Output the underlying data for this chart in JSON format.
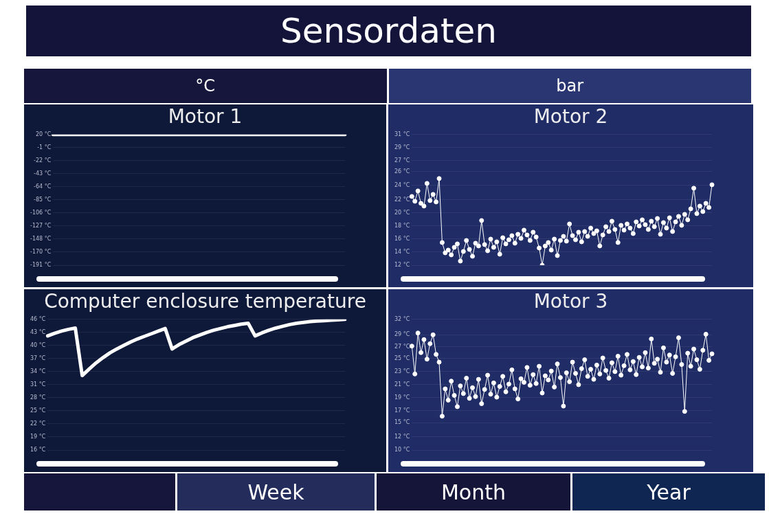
{
  "chart_data": [
    {
      "type": "other",
      "title": "Sensordaten",
      "annotations": [
        "°C",
        "bar"
      ]
    },
    {
      "type": "line",
      "title": "Motor 1",
      "categories": [
        null,
        null,
        null,
        null,
        null,
        null,
        null,
        null,
        null,
        null
      ],
      "color": "#ffffff",
      "values": [
        20,
        20,
        20,
        20,
        20,
        20,
        20,
        20,
        20,
        20
      ],
      "ylim": [
        -191,
        20
      ],
      "yticks": [
        {
          "value": 20,
          "label": "20 °C"
        },
        {
          "value": -1.1,
          "label": "-1 °C"
        },
        {
          "value": -22.2,
          "label": "-22 °C"
        },
        {
          "value": -43.3,
          "label": "-43 °C"
        },
        {
          "value": -64.4,
          "label": "-64 °C"
        },
        {
          "value": -85.5,
          "label": "-85 °C"
        },
        {
          "value": -106.4,
          "label": "-106 °C"
        },
        {
          "value": -127.4,
          "label": "-127 °C"
        },
        {
          "value": -148.4,
          "label": "-148 °C"
        },
        {
          "value": -169.9,
          "label": "-170 °C"
        },
        {
          "value": -191,
          "label": "-191 °C"
        }
      ],
      "tick_labels": "y",
      "grid": "y",
      "marker": "none"
    },
    {
      "type": "line",
      "title": "Motor 2",
      "categories": [
        null,
        null,
        null,
        null,
        null,
        null,
        null,
        null,
        null,
        null,
        null,
        null,
        null,
        null,
        null,
        null,
        null,
        null,
        null,
        null,
        null,
        null,
        null,
        null,
        null,
        null,
        null,
        null,
        null,
        null,
        null,
        null,
        null,
        null,
        null,
        null,
        null,
        null,
        null,
        null,
        null,
        null,
        null,
        null,
        null,
        null,
        null,
        null,
        null,
        null,
        null,
        null,
        null,
        null,
        null,
        null,
        null,
        null,
        null,
        null,
        null,
        null,
        null,
        null,
        null,
        null,
        null,
        null,
        null,
        null,
        null,
        null,
        null,
        null,
        null,
        null,
        null,
        null,
        null,
        null,
        null,
        null,
        null,
        null,
        null,
        null,
        null,
        null,
        null,
        null,
        null,
        null,
        null,
        null,
        null,
        null,
        null,
        null,
        null,
        null
      ],
      "color": "#ffffff",
      "values": [
        22.0,
        21.3,
        22.8,
        21.0,
        20.6,
        23.9,
        21.4,
        22.3,
        21.2,
        24.6,
        15.3,
        13.8,
        14.2,
        13.5,
        14.6,
        15.1,
        12.6,
        14.0,
        15.6,
        14.3,
        13.3,
        15.2,
        14.8,
        18.5,
        15.0,
        14.1,
        15.8,
        14.6,
        15.4,
        13.6,
        16.0,
        15.1,
        15.7,
        16.3,
        15.2,
        16.5,
        15.9,
        17.1,
        16.4,
        15.6,
        16.8,
        16.1,
        14.5,
        12.0,
        14.8,
        15.3,
        14.2,
        15.8,
        13.4,
        15.6,
        16.2,
        15.5,
        18.0,
        16.3,
        15.7,
        16.8,
        15.4,
        16.9,
        16.2,
        17.4,
        16.6,
        17.0,
        14.8,
        16.4,
        17.6,
        16.9,
        18.4,
        17.2,
        15.3,
        17.8,
        17.1,
        18.0,
        17.4,
        16.6,
        18.3,
        17.7,
        18.6,
        17.9,
        17.2,
        18.4,
        17.6,
        18.8,
        16.5,
        18.2,
        17.4,
        18.9,
        16.9,
        18.3,
        19.1,
        17.8,
        19.4,
        18.6,
        20.2,
        23.2,
        19.5,
        20.6,
        19.8,
        21.0,
        20.4,
        23.7
      ],
      "ylim": [
        12,
        31
      ],
      "yticks": [
        {
          "value": 31,
          "label": "31 °C"
        },
        {
          "value": 29.1,
          "label": "29 °C"
        },
        {
          "value": 27.2,
          "label": "27 °C"
        },
        {
          "value": 25.6,
          "label": "26 °C"
        },
        {
          "value": 23.6,
          "label": "24 °C"
        },
        {
          "value": 21.5,
          "label": "22 °C"
        },
        {
          "value": 19.6,
          "label": "20 °C"
        },
        {
          "value": 17.7,
          "label": "18 °C"
        },
        {
          "value": 15.8,
          "label": "16 °C"
        },
        {
          "value": 13.9,
          "label": "14 °C"
        },
        {
          "value": 12,
          "label": "12 °C"
        }
      ],
      "tick_labels": "y",
      "grid": "y",
      "marker": "circle"
    },
    {
      "type": "line",
      "title": "Computer enclosure temperature",
      "categories": [
        null,
        null,
        null,
        null,
        null,
        null,
        null,
        null,
        null,
        null,
        null,
        null,
        null,
        null,
        null,
        null,
        null,
        null,
        null,
        null,
        null,
        null,
        null,
        null,
        null,
        null,
        null,
        null,
        null,
        null,
        null,
        null,
        null,
        null,
        null,
        null,
        null,
        null,
        null,
        null,
        null,
        null,
        null,
        null
      ],
      "color": "#ffffff",
      "values": [
        42.2,
        42.8,
        43.3,
        43.7,
        44.0,
        33.1,
        34.6,
        36.0,
        37.2,
        38.3,
        39.2,
        40.0,
        40.8,
        41.5,
        42.1,
        42.7,
        43.3,
        43.9,
        39.2,
        40.2,
        41.0,
        41.8,
        42.4,
        43.0,
        43.5,
        43.9,
        44.3,
        44.6,
        44.9,
        45.1,
        42.2,
        42.9,
        43.5,
        44.0,
        44.4,
        44.8,
        45.1,
        45.3,
        45.5,
        45.6,
        45.7,
        45.8,
        45.9,
        46.0
      ],
      "ylim": [
        16,
        46
      ],
      "yticks": [
        {
          "value": 46,
          "label": "46 °C"
        },
        {
          "value": 43,
          "label": "43 °C"
        },
        {
          "value": 40,
          "label": "40 °C"
        },
        {
          "value": 37,
          "label": "37 °C"
        },
        {
          "value": 34,
          "label": "34 °C"
        },
        {
          "value": 31,
          "label": "31 °C"
        },
        {
          "value": 28,
          "label": "28 °C"
        },
        {
          "value": 25,
          "label": "25 °C"
        },
        {
          "value": 22,
          "label": "22 °C"
        },
        {
          "value": 19,
          "label": "19 °C"
        },
        {
          "value": 16,
          "label": "16 °C"
        }
      ],
      "tick_labels": "y",
      "grid": "y",
      "marker": "none"
    },
    {
      "type": "line",
      "title": "Motor 3",
      "categories": [
        null,
        null,
        null,
        null,
        null,
        null,
        null,
        null,
        null,
        null,
        null,
        null,
        null,
        null,
        null,
        null,
        null,
        null,
        null,
        null,
        null,
        null,
        null,
        null,
        null,
        null,
        null,
        null,
        null,
        null,
        null,
        null,
        null,
        null,
        null,
        null,
        null,
        null,
        null,
        null,
        null,
        null,
        null,
        null,
        null,
        null,
        null,
        null,
        null,
        null,
        null,
        null,
        null,
        null,
        null,
        null,
        null,
        null,
        null,
        null,
        null,
        null,
        null,
        null,
        null,
        null,
        null,
        null,
        null,
        null,
        null,
        null,
        null,
        null,
        null,
        null,
        null,
        null,
        null,
        null,
        null,
        null,
        null,
        null,
        null,
        null,
        null,
        null,
        null,
        null,
        null,
        null,
        null,
        null,
        null,
        null,
        null,
        null,
        null,
        null
      ],
      "color": "#ffffff",
      "values": [
        27.5,
        22.8,
        29.7,
        26.4,
        28.6,
        25.3,
        27.9,
        29.4,
        26.1,
        24.8,
        15.7,
        20.3,
        18.4,
        21.6,
        19.2,
        17.3,
        20.8,
        19.5,
        22.1,
        18.7,
        20.5,
        19.0,
        21.9,
        17.8,
        20.2,
        22.6,
        19.4,
        21.3,
        18.9,
        20.7,
        22.4,
        19.8,
        21.1,
        23.5,
        20.3,
        18.6,
        22.0,
        21.4,
        23.9,
        20.9,
        22.7,
        21.2,
        24.1,
        19.6,
        22.5,
        21.8,
        23.3,
        20.6,
        24.5,
        22.2,
        17.4,
        23.0,
        21.5,
        24.8,
        22.9,
        21.0,
        23.7,
        25.2,
        22.4,
        23.6,
        21.9,
        24.3,
        22.8,
        25.5,
        23.4,
        22.1,
        24.7,
        23.2,
        25.8,
        22.6,
        24.2,
        26.1,
        23.5,
        24.9,
        22.7,
        25.6,
        24.0,
        26.4,
        23.8,
        28.7,
        24.6,
        25.3,
        23.1,
        27.2,
        24.8,
        26.0,
        22.9,
        25.7,
        28.9,
        24.4,
        16.5,
        26.3,
        24.1,
        27.0,
        25.2,
        23.6,
        26.8,
        29.5,
        25.1,
        26.2
      ],
      "ylim": [
        10,
        32
      ],
      "yticks": [
        {
          "value": 32,
          "label": "32 °C"
        },
        {
          "value": 29.4,
          "label": "29 °C"
        },
        {
          "value": 27.4,
          "label": "27 °C"
        },
        {
          "value": 25.4,
          "label": "25 °C"
        },
        {
          "value": 23.2,
          "label": "23 °C"
        },
        {
          "value": 21,
          "label": "21 °C"
        },
        {
          "value": 18.8,
          "label": "19 °C"
        },
        {
          "value": 16.6,
          "label": "17 °C"
        },
        {
          "value": 14.6,
          "label": "15 °C"
        },
        {
          "value": 12.2,
          "label": "12 °C"
        },
        {
          "value": 10,
          "label": "10 °C"
        }
      ],
      "tick_labels": "y",
      "grid": "y",
      "marker": "circle"
    },
    {
      "type": "other",
      "annotations": [
        "Week",
        "Month",
        "Year"
      ]
    }
  ]
}
